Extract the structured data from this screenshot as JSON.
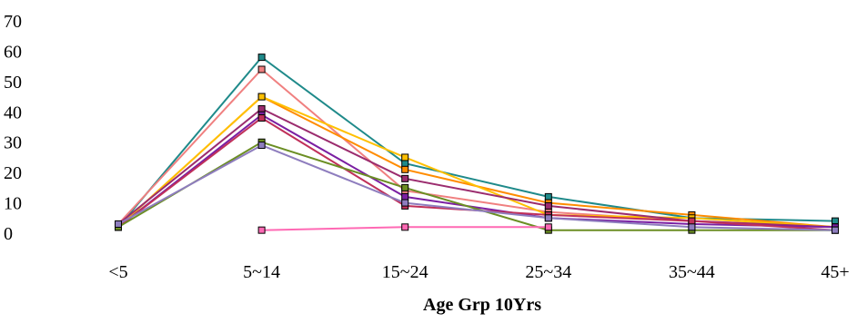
{
  "chart_data": {
    "type": "line",
    "title": "",
    "xlabel": "Age Grp 10Yrs",
    "ylabel": "",
    "categories": [
      "<5",
      "5~14",
      "15~24",
      "25~34",
      "35~44",
      "45+"
    ],
    "yticks": [
      "0",
      "10",
      "20",
      "30",
      "40",
      "50",
      "60",
      "70"
    ],
    "ylim": [
      0,
      70
    ],
    "grid": false,
    "legend": "none",
    "series": [
      {
        "color": "#1f8a8a",
        "values": [
          2,
          58,
          23,
          12,
          5,
          4
        ]
      },
      {
        "color": "#f08080",
        "values": [
          3,
          54,
          14,
          7,
          4,
          2
        ]
      },
      {
        "color": "#ff8c00",
        "values": [
          2,
          45,
          21,
          10,
          6,
          2
        ]
      },
      {
        "color": "#ffc000",
        "values": [
          2,
          45,
          25,
          6,
          5,
          2
        ]
      },
      {
        "color": "#9b2c6e",
        "values": [
          3,
          41,
          18,
          9,
          4,
          2
        ]
      },
      {
        "color": "#7b1fa2",
        "values": [
          2,
          39,
          12,
          5,
          3,
          2
        ]
      },
      {
        "color": "#c0305a",
        "values": [
          2,
          38,
          9,
          6,
          4,
          1
        ]
      },
      {
        "color": "#6b8e23",
        "values": [
          2,
          30,
          15,
          1,
          1,
          1
        ]
      },
      {
        "color": "#8e7dbe",
        "values": [
          3,
          29,
          10,
          5,
          2,
          1
        ]
      },
      {
        "color": "#ff69b4",
        "values": [
          null,
          1,
          2,
          2,
          null,
          null
        ]
      }
    ]
  }
}
